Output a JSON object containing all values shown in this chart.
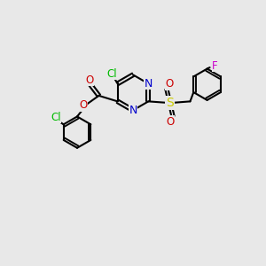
{
  "bg_color": "#e8e8e8",
  "bond_color": "#000000",
  "bond_width": 1.5,
  "atom_colors": {
    "C": "#000000",
    "N": "#0000cc",
    "O": "#cc0000",
    "S": "#cccc00",
    "Cl_green": "#00bb00",
    "F": "#cc00cc"
  },
  "font_size": 8.5
}
